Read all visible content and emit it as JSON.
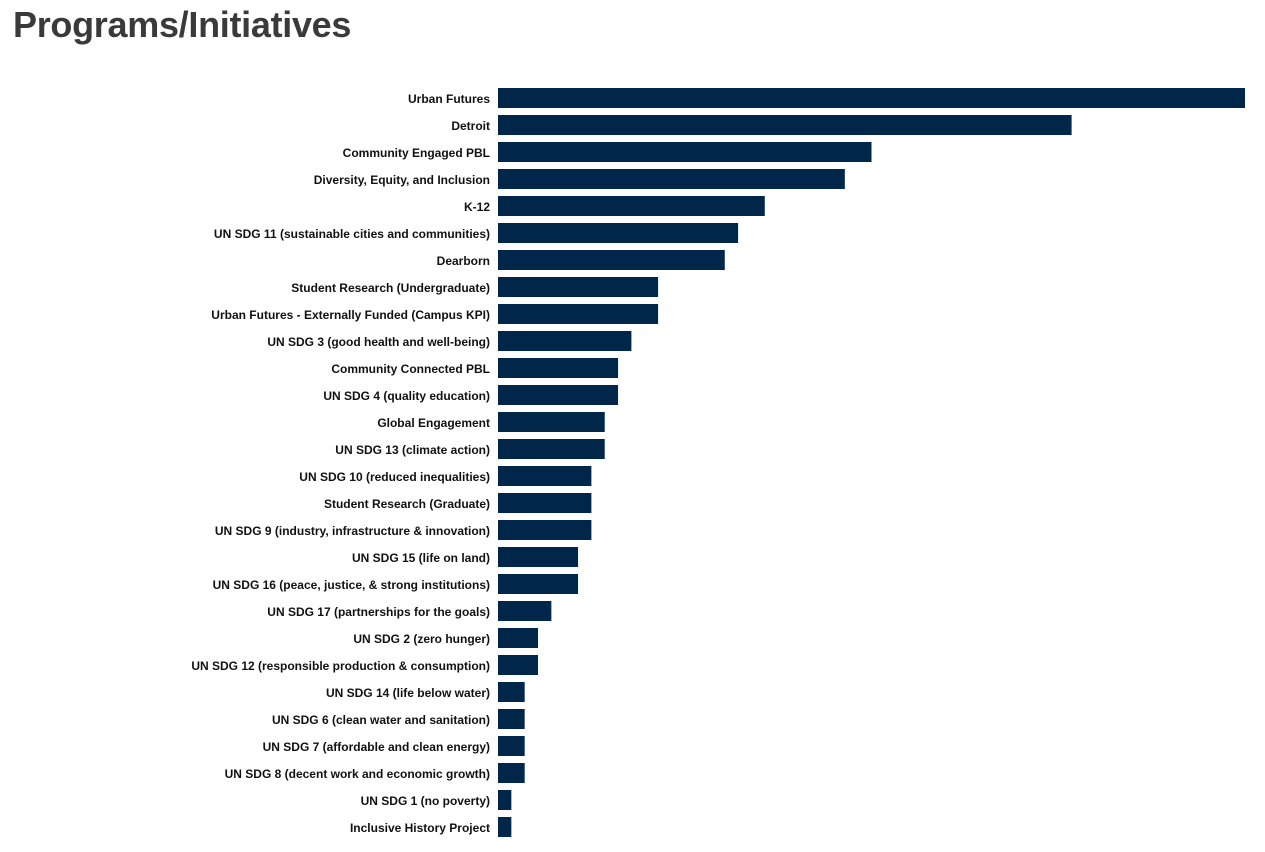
{
  "page": {
    "title": "Programs/Initiatives"
  },
  "chart_data": {
    "type": "bar",
    "orientation": "horizontal",
    "bar_color": "#002649",
    "categories": [
      "Urban Futures",
      "Detroit",
      "Community Engaged PBL",
      "Diversity, Equity, and Inclusion",
      "K-12",
      "UN SDG 11 (sustainable cities and communities)",
      "Dearborn",
      "Student Research (Undergraduate)",
      "Urban Futures - Externally Funded (Campus KPI)",
      "UN SDG 3 (good health and well-being)",
      "Community Connected PBL",
      "UN SDG 4 (quality education)",
      "Global Engagement",
      "UN SDG 13 (climate action)",
      "UN SDG 10 (reduced inequalities)",
      "Student Research (Graduate)",
      "UN SDG 9 (industry, infrastructure & innovation)",
      "UN SDG 15 (life on land)",
      "UN SDG 16 (peace, justice, & strong institutions)",
      "UN SDG 17 (partnerships for the goals)",
      "UN SDG 2 (zero hunger)",
      "UN SDG 12 (responsible production & consumption)",
      "UN SDG 14 (life below water)",
      "UN SDG 6 (clean water and sanitation)",
      "UN SDG 7 (affordable and clean energy)",
      "UN SDG 8 (decent work and economic growth)",
      "UN SDG 1 (no poverty)",
      "Inclusive History Project"
    ],
    "values": [
      56,
      43,
      28,
      26,
      20,
      18,
      17,
      12,
      12,
      10,
      9,
      9,
      8,
      8,
      7,
      7,
      7,
      6,
      6,
      4,
      3,
      3,
      2,
      2,
      2,
      2,
      1,
      1
    ],
    "xlim": [
      0,
      56
    ],
    "title": "",
    "xlabel": "",
    "ylabel": "",
    "grid": false,
    "legend": "none"
  }
}
